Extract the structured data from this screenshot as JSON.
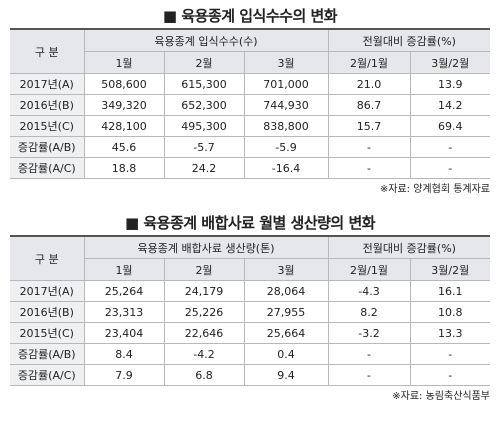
{
  "tables": [
    {
      "title": "■ 육용종계 입식수수의 변화",
      "corner": "구 분",
      "groups": [
        "육용종계 입식수수(수)",
        "전월대비 증감률(%)"
      ],
      "columns": [
        "1월",
        "2월",
        "3월",
        "2월/1월",
        "3월/2월"
      ],
      "rows": [
        [
          "2017년(A)",
          "508,600",
          "615,300",
          "701,000",
          "21.0",
          "13.9"
        ],
        [
          "2016년(B)",
          "349,320",
          "652,300",
          "744,930",
          "86.7",
          "14.2"
        ],
        [
          "2015년(C)",
          "428,100",
          "495,300",
          "838,800",
          "15.7",
          "69.4"
        ],
        [
          "증감률(A/B)",
          "45.6",
          "-5.7",
          "-5.9",
          "-",
          "-"
        ],
        [
          "증감률(A/C)",
          "18.8",
          "24.2",
          "-16.4",
          "-",
          "-"
        ]
      ],
      "source": "※자료: 양계협회 통계자료"
    },
    {
      "title": "■ 육용종계 배합사료 월별 생산량의 변화",
      "corner": "구 분",
      "groups": [
        "육용종계 배합사료 생산량(톤)",
        "전월대비 증감률(%)"
      ],
      "columns": [
        "1월",
        "2월",
        "3월",
        "2월/1월",
        "3월/2월"
      ],
      "rows": [
        [
          "2017년(A)",
          "25,264",
          "24,179",
          "28,064",
          "-4.3",
          "16.1"
        ],
        [
          "2016년(B)",
          "23,313",
          "25,226",
          "27,955",
          "8.2",
          "10.8"
        ],
        [
          "2015년(C)",
          "23,404",
          "22,646",
          "25,664",
          "-3.2",
          "13.3"
        ],
        [
          "증감률(A/B)",
          "8.4",
          "-4.2",
          "0.4",
          "-",
          "-"
        ],
        [
          "증감률(A/C)",
          "7.9",
          "6.8",
          "9.4",
          "-",
          "-"
        ]
      ],
      "source": "※자료: 농림축산식품부"
    }
  ]
}
